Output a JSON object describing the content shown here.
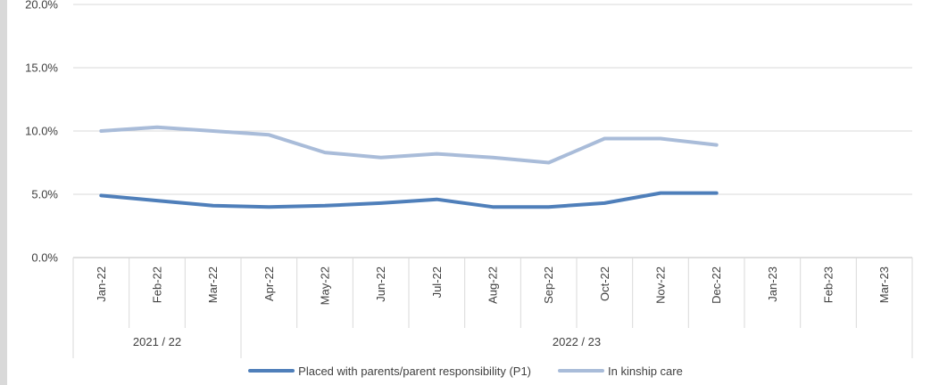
{
  "chart_data": {
    "type": "line",
    "categories": [
      "Jan-22",
      "Feb-22",
      "Mar-22",
      "Apr-22",
      "May-22",
      "Jun-22",
      "Jul-22",
      "Aug-22",
      "Sep-22",
      "Oct-22",
      "Nov-22",
      "Dec-22",
      "Jan-23",
      "Feb-23",
      "Mar-23"
    ],
    "groups": [
      {
        "label": "2021 / 22",
        "count": 3
      },
      {
        "label": "2022 / 23",
        "count": 12
      }
    ],
    "series": [
      {
        "name": "Placed with parents/parent responsibility (P1)",
        "color": "#4f7fba",
        "values": [
          4.9,
          4.5,
          4.1,
          4.0,
          4.1,
          4.3,
          4.6,
          4.0,
          4.0,
          4.3,
          5.1,
          5.1,
          null,
          null,
          null
        ]
      },
      {
        "name": "In kinship care",
        "color": "#a9bcd9",
        "values": [
          10.0,
          10.3,
          10.0,
          9.7,
          8.3,
          7.9,
          8.2,
          7.9,
          7.5,
          9.4,
          9.4,
          8.9,
          null,
          null,
          null
        ]
      }
    ],
    "yticks": [
      "0.0%",
      "5.0%",
      "10.0%",
      "15.0%",
      "20.0%"
    ],
    "ylim": [
      0,
      20
    ],
    "grid": true,
    "legend_position": "bottom"
  }
}
